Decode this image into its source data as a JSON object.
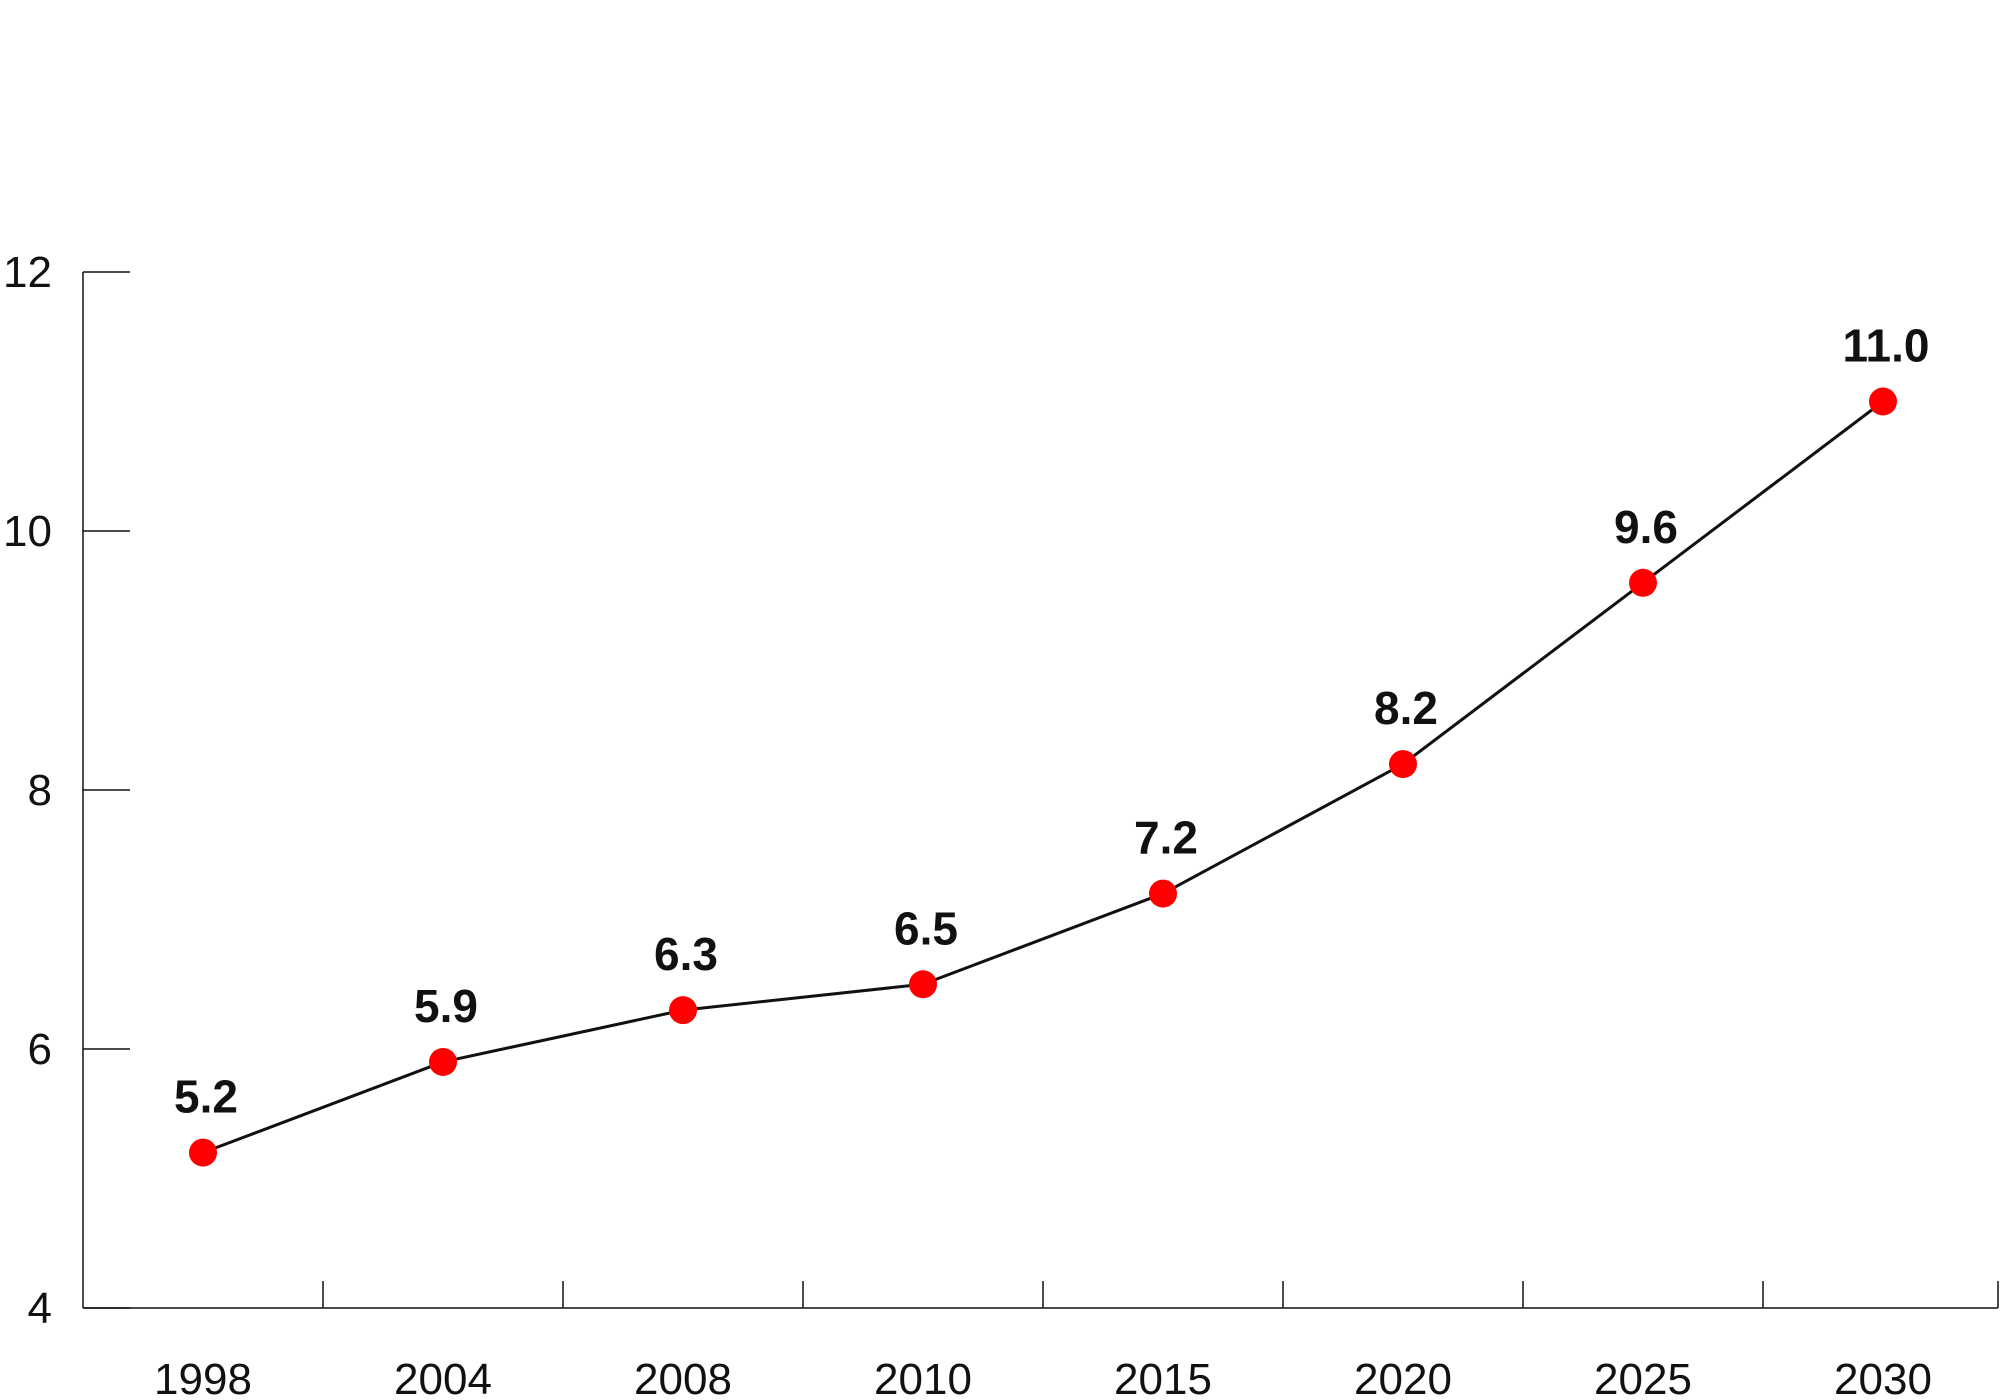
{
  "chart_data": {
    "type": "line",
    "categories": [
      "1998",
      "2004",
      "2008",
      "2010",
      "2015",
      "2020",
      "2025",
      "2030"
    ],
    "series": [
      {
        "values": [
          5.2,
          5.9,
          6.3,
          6.5,
          7.2,
          8.2,
          9.6,
          11.0
        ]
      }
    ],
    "data_labels": [
      "5.2",
      "5.9",
      "6.3",
      "6.5",
      "7.2",
      "8.2",
      "9.6",
      "11.0"
    ],
    "ylim": [
      4,
      12
    ],
    "yticks": [
      4,
      6,
      8,
      10,
      12
    ],
    "title": "",
    "xlabel": "",
    "ylabel": "",
    "grid": false,
    "colors": {
      "line": "#111111",
      "marker": "#ff0000",
      "axis": "#111111"
    }
  }
}
